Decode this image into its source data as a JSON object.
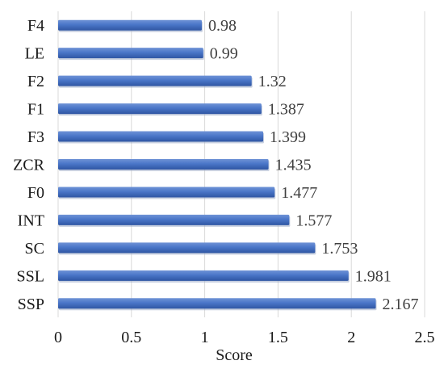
{
  "chart_data": {
    "type": "bar",
    "orientation": "horizontal",
    "categories": [
      "F4",
      "LE",
      "F2",
      "F1",
      "F3",
      "ZCR",
      "F0",
      "INT",
      "SC",
      "SSL",
      "SSP"
    ],
    "values": [
      0.98,
      0.99,
      1.32,
      1.387,
      1.399,
      1.435,
      1.477,
      1.577,
      1.753,
      1.981,
      2.167
    ],
    "value_labels": [
      "0.98",
      "0.99",
      "1.32",
      "1.387",
      "1.399",
      "1.435",
      "1.477",
      "1.577",
      "1.753",
      "1.981",
      "2.167"
    ],
    "xlabel": "Score",
    "xlim": [
      0,
      2.5
    ],
    "xticks": [
      0,
      0.5,
      1,
      1.5,
      2,
      2.5
    ],
    "xtick_labels": [
      "0",
      "0.5",
      "1",
      "1.5",
      "2",
      "2.5"
    ],
    "grid": "vertical",
    "bar_color": "#4472c4",
    "grid_color": "#d9d9d9"
  }
}
